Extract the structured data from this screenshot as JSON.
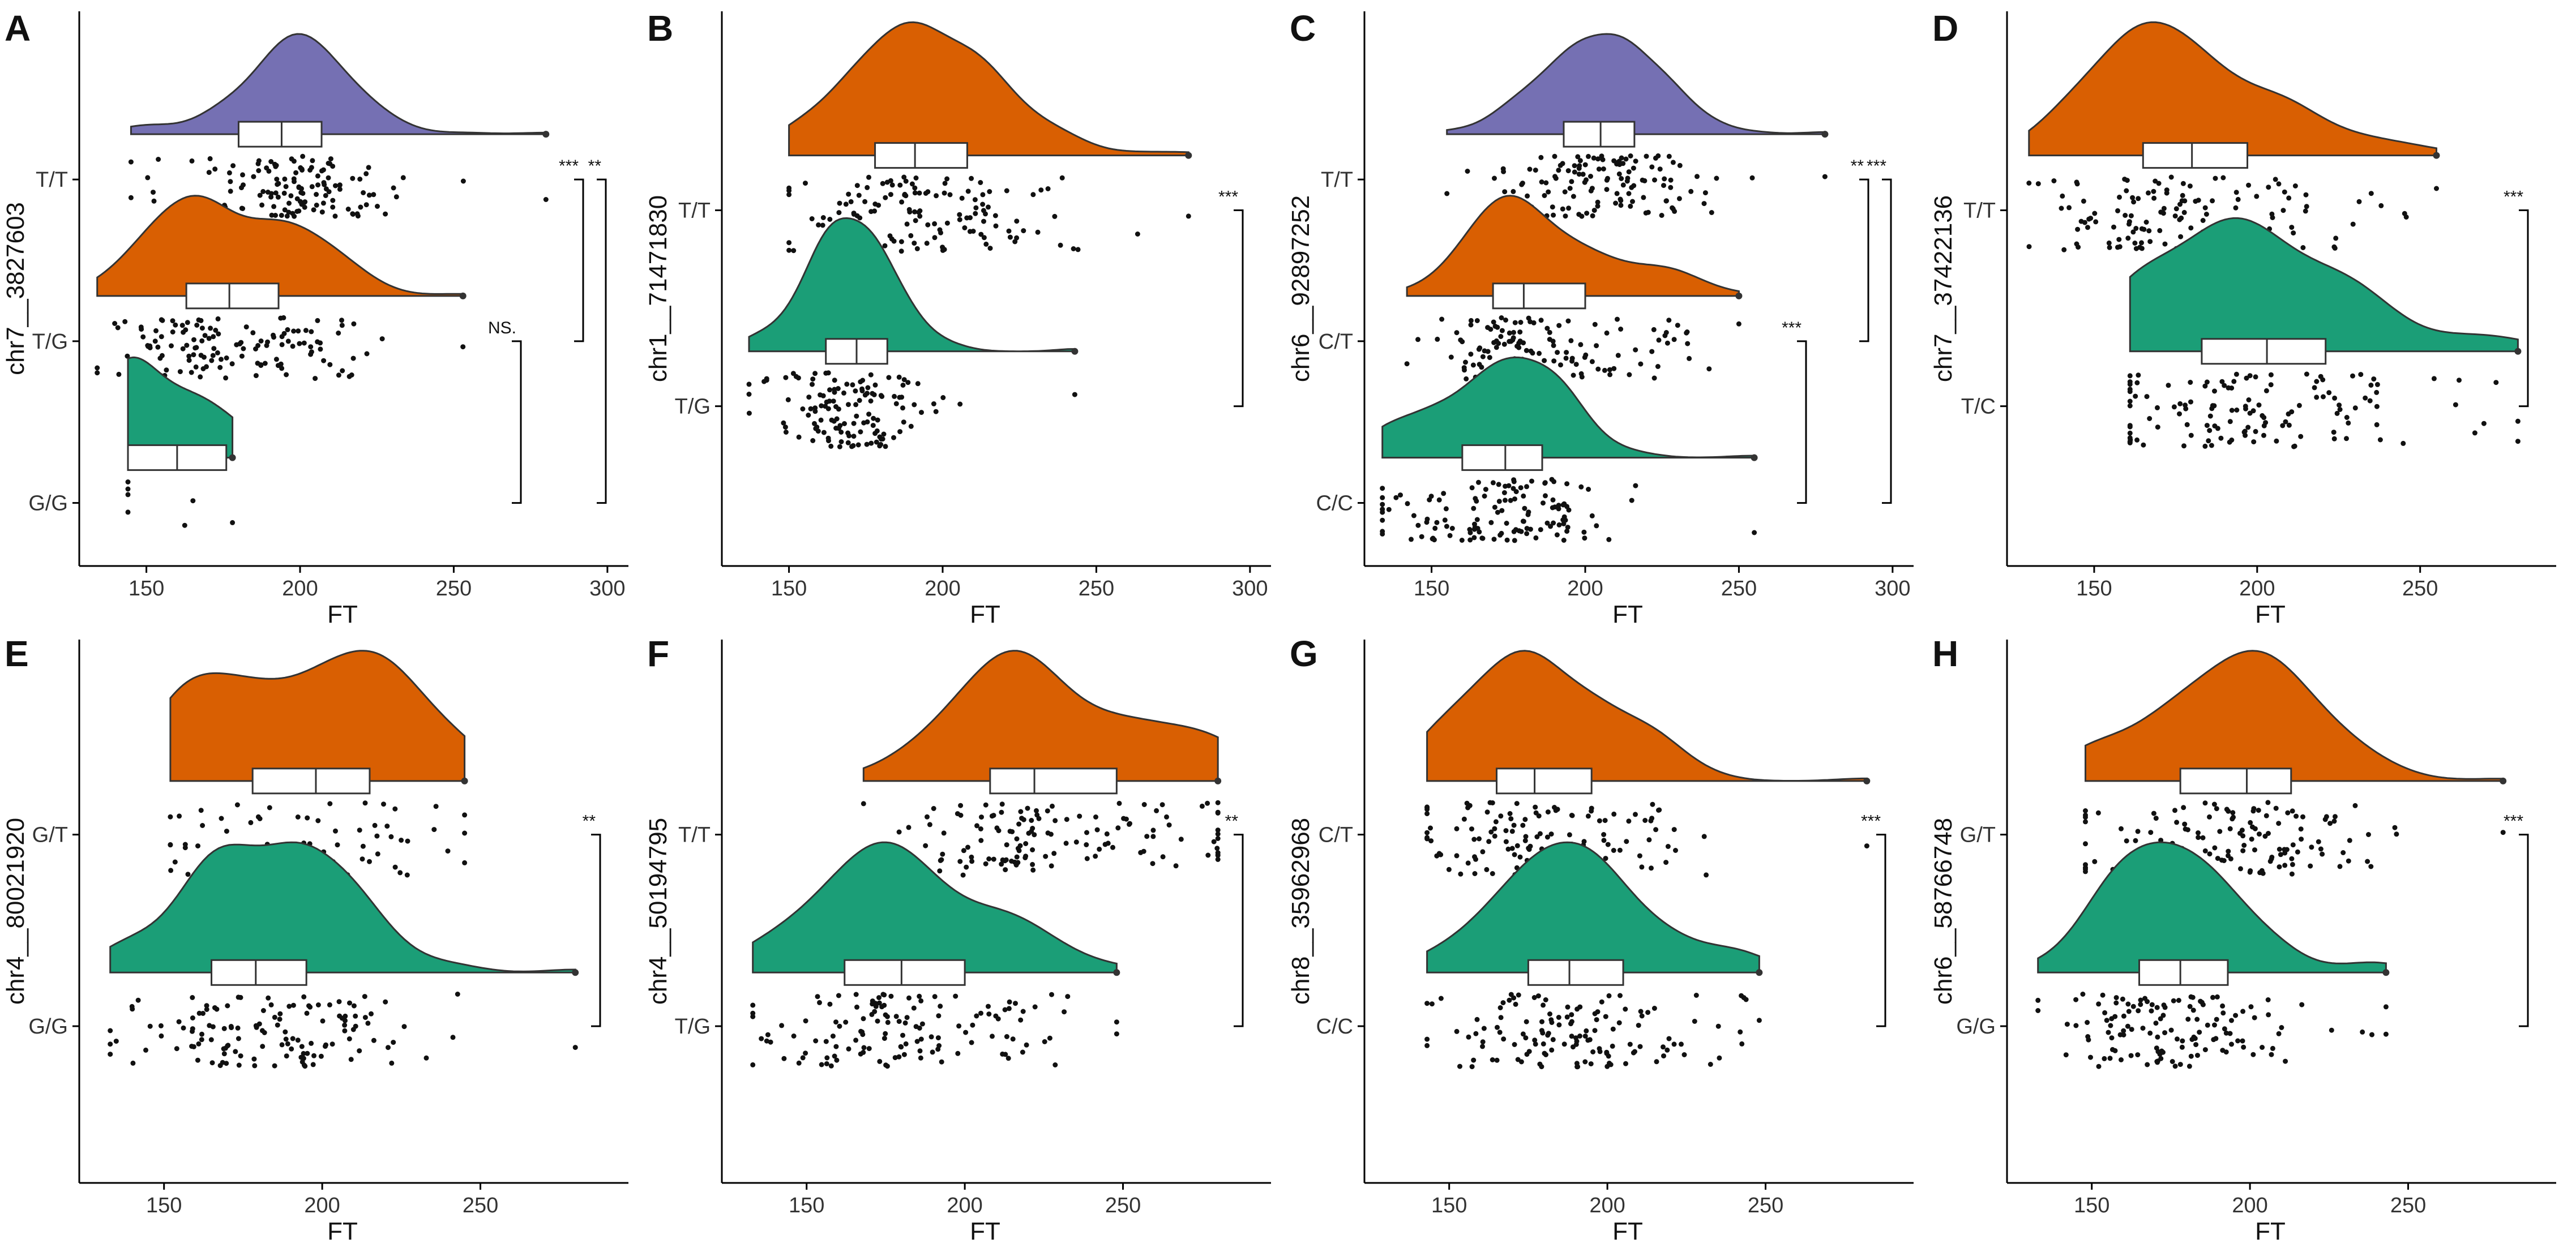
{
  "figure": {
    "panels": [
      {
        "label": "A"
      },
      {
        "label": "B"
      },
      {
        "label": "C"
      },
      {
        "label": "D"
      },
      {
        "label": "E"
      },
      {
        "label": "F"
      },
      {
        "label": "G"
      },
      {
        "label": "H"
      }
    ]
  },
  "chart_data": [
    {
      "panel": "A",
      "type": "raincloud",
      "title": "",
      "xlabel": "FT",
      "ylabel": "chr7__3827603",
      "xlim": [
        130,
        305
      ],
      "xticks": [
        150,
        200,
        250,
        300
      ],
      "categories": [
        "T/T",
        "T/G",
        "G/G"
      ],
      "series": [
        {
          "name": "T/T",
          "color": "#7570B3",
          "min": 145,
          "q1": 180,
          "median": 194,
          "q3": 207,
          "max": 280
        },
        {
          "name": "T/G",
          "color": "#D95F02",
          "min": 134,
          "q1": 163,
          "median": 177,
          "q3": 193,
          "max": 253
        },
        {
          "name": "G/G",
          "color": "#1B9E77",
          "min": 144,
          "q1": 144,
          "median": 160,
          "q3": 176,
          "max": 178
        }
      ],
      "comparisons": [
        {
          "groups": [
            "T/T",
            "T/G"
          ],
          "label": "***"
        },
        {
          "groups": [
            "T/G",
            "G/G"
          ],
          "label": "NS."
        },
        {
          "groups": [
            "T/T",
            "G/G"
          ],
          "label": "**"
        }
      ]
    },
    {
      "panel": "B",
      "type": "raincloud",
      "title": "",
      "xlabel": "FT",
      "ylabel": "chr1__71471830",
      "xlim": [
        130,
        305
      ],
      "xticks": [
        150,
        200,
        250,
        300
      ],
      "categories": [
        "T/T",
        "T/G"
      ],
      "series": [
        {
          "name": "T/T",
          "color": "#D95F02",
          "min": 150,
          "q1": 178,
          "median": 191,
          "q3": 208,
          "max": 280
        },
        {
          "name": "T/G",
          "color": "#1B9E77",
          "min": 137,
          "q1": 162,
          "median": 172,
          "q3": 182,
          "max": 243
        }
      ],
      "comparisons": [
        {
          "groups": [
            "T/T",
            "T/G"
          ],
          "label": "***"
        }
      ]
    },
    {
      "panel": "C",
      "type": "raincloud",
      "title": "",
      "xlabel": "FT",
      "ylabel": "chr6__92897252",
      "xlim": [
        130,
        305
      ],
      "xticks": [
        150,
        200,
        250,
        300
      ],
      "categories": [
        "T/T",
        "C/T",
        "C/C"
      ],
      "series": [
        {
          "name": "T/T",
          "color": "#7570B3",
          "min": 155,
          "q1": 193,
          "median": 205,
          "q3": 216,
          "max": 278
        },
        {
          "name": "C/T",
          "color": "#D95F02",
          "min": 142,
          "q1": 170,
          "median": 180,
          "q3": 200,
          "max": 250
        },
        {
          "name": "C/C",
          "color": "#1B9E77",
          "min": 134,
          "q1": 160,
          "median": 174,
          "q3": 186,
          "max": 255
        }
      ],
      "comparisons": [
        {
          "groups": [
            "T/T",
            "C/T"
          ],
          "label": "**"
        },
        {
          "groups": [
            "C/T",
            "C/C"
          ],
          "label": "***"
        },
        {
          "groups": [
            "T/T",
            "C/C"
          ],
          "label": "***"
        }
      ]
    },
    {
      "panel": "D",
      "type": "raincloud",
      "title": "",
      "xlabel": "FT",
      "ylabel": "chr7__37422136",
      "xlim": [
        125,
        290
      ],
      "xticks": [
        150,
        200,
        250
      ],
      "categories": [
        "T/T",
        "T/C"
      ],
      "series": [
        {
          "name": "T/T",
          "color": "#D95F02",
          "min": 130,
          "q1": 165,
          "median": 180,
          "q3": 197,
          "max": 255
        },
        {
          "name": "T/C",
          "color": "#1B9E77",
          "min": 161,
          "q1": 183,
          "median": 203,
          "q3": 221,
          "max": 280
        }
      ],
      "comparisons": [
        {
          "groups": [
            "T/T",
            "T/C"
          ],
          "label": "***"
        }
      ]
    },
    {
      "panel": "E",
      "type": "raincloud",
      "title": "",
      "xlabel": "FT",
      "ylabel": "chr4__80021920",
      "xlim": [
        125,
        295
      ],
      "xticks": [
        150,
        200,
        250
      ],
      "categories": [
        "G/T",
        "G/G"
      ],
      "series": [
        {
          "name": "G/T",
          "color": "#D95F02",
          "min": 152,
          "q1": 178,
          "median": 198,
          "q3": 215,
          "max": 245
        },
        {
          "name": "G/G",
          "color": "#1B9E77",
          "min": 133,
          "q1": 165,
          "median": 179,
          "q3": 195,
          "max": 280
        }
      ],
      "comparisons": [
        {
          "groups": [
            "G/T",
            "G/G"
          ],
          "label": "**"
        }
      ]
    },
    {
      "panel": "F",
      "type": "raincloud",
      "title": "",
      "xlabel": "FT",
      "ylabel": "chr4__50194795",
      "xlim": [
        125,
        295
      ],
      "xticks": [
        150,
        200,
        250
      ],
      "categories": [
        "T/T",
        "T/G"
      ],
      "series": [
        {
          "name": "T/T",
          "color": "#D95F02",
          "min": 168,
          "q1": 208,
          "median": 222,
          "q3": 248,
          "max": 280
        },
        {
          "name": "T/G",
          "color": "#1B9E77",
          "min": 133,
          "q1": 162,
          "median": 180,
          "q3": 200,
          "max": 248
        }
      ],
      "comparisons": [
        {
          "groups": [
            "T/T",
            "T/G"
          ],
          "label": "**"
        }
      ]
    },
    {
      "panel": "G",
      "type": "raincloud",
      "title": "",
      "xlabel": "FT",
      "ylabel": "chr8__35962968",
      "xlim": [
        125,
        295
      ],
      "xticks": [
        150,
        200,
        250
      ],
      "categories": [
        "C/T",
        "C/C"
      ],
      "series": [
        {
          "name": "C/T",
          "color": "#D95F02",
          "min": 143,
          "q1": 165,
          "median": 177,
          "q3": 195,
          "max": 282
        },
        {
          "name": "C/C",
          "color": "#1B9E77",
          "min": 143,
          "q1": 175,
          "median": 188,
          "q3": 205,
          "max": 248
        }
      ],
      "comparisons": [
        {
          "groups": [
            "C/T",
            "C/C"
          ],
          "label": "***"
        }
      ]
    },
    {
      "panel": "H",
      "type": "raincloud",
      "title": "",
      "xlabel": "FT",
      "ylabel": "chr6__58766748",
      "xlim": [
        125,
        295
      ],
      "xticks": [
        150,
        200,
        250
      ],
      "categories": [
        "G/T",
        "G/G"
      ],
      "series": [
        {
          "name": "G/T",
          "color": "#D95F02",
          "min": 148,
          "q1": 178,
          "median": 199,
          "q3": 213,
          "max": 280
        },
        {
          "name": "G/G",
          "color": "#1B9E77",
          "min": 133,
          "q1": 165,
          "median": 178,
          "q3": 193,
          "max": 243
        }
      ],
      "comparisons": [
        {
          "groups": [
            "G/T",
            "G/G"
          ],
          "label": "***"
        }
      ]
    }
  ]
}
